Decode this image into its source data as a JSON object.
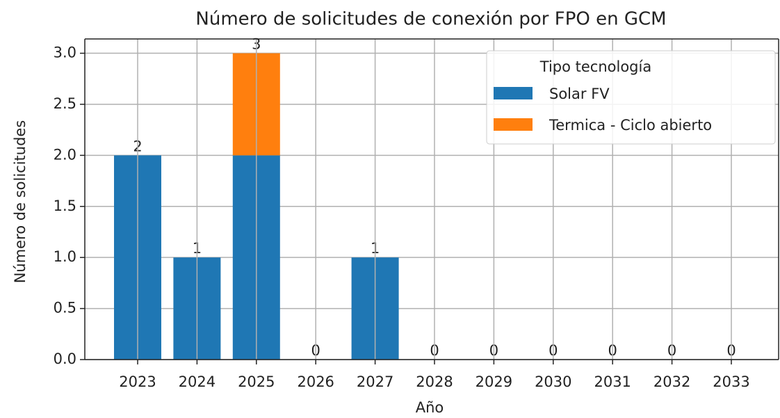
{
  "chart_data": {
    "type": "stacked_bar",
    "title": "Número de solicitudes de conexión por FPO en GCM",
    "x_label": "Año",
    "y_label": "Número de solicitudes",
    "categories": [
      "2023",
      "2024",
      "2025",
      "2026",
      "2027",
      "2028",
      "2029",
      "2030",
      "2031",
      "2032",
      "2033"
    ],
    "series": [
      {
        "name": "Solar FV",
        "color": "#1f77b4",
        "values": [
          2,
          1,
          2,
          0,
          1,
          0,
          0,
          0,
          0,
          0,
          0
        ]
      },
      {
        "name": "Termica - Ciclo abierto",
        "color": "#ff7f0e",
        "values": [
          0,
          0,
          1,
          0,
          0,
          0,
          0,
          0,
          0,
          0,
          0
        ]
      }
    ],
    "total_labels": [
      2,
      1,
      3,
      0,
      1,
      0,
      0,
      0,
      0,
      0,
      0
    ],
    "ylim": [
      0,
      3.14
    ],
    "yticks": [
      {
        "value": 0,
        "label": "0.0"
      },
      0.5,
      {
        "value": 1,
        "label": "1.0"
      },
      1.5,
      {
        "value": 2,
        "label": "2.0"
      },
      2.5,
      {
        "value": 3,
        "label": "3.0"
      }
    ],
    "grid": true,
    "legend": {
      "title": "Tipo tecnología",
      "position": "upper right"
    }
  }
}
